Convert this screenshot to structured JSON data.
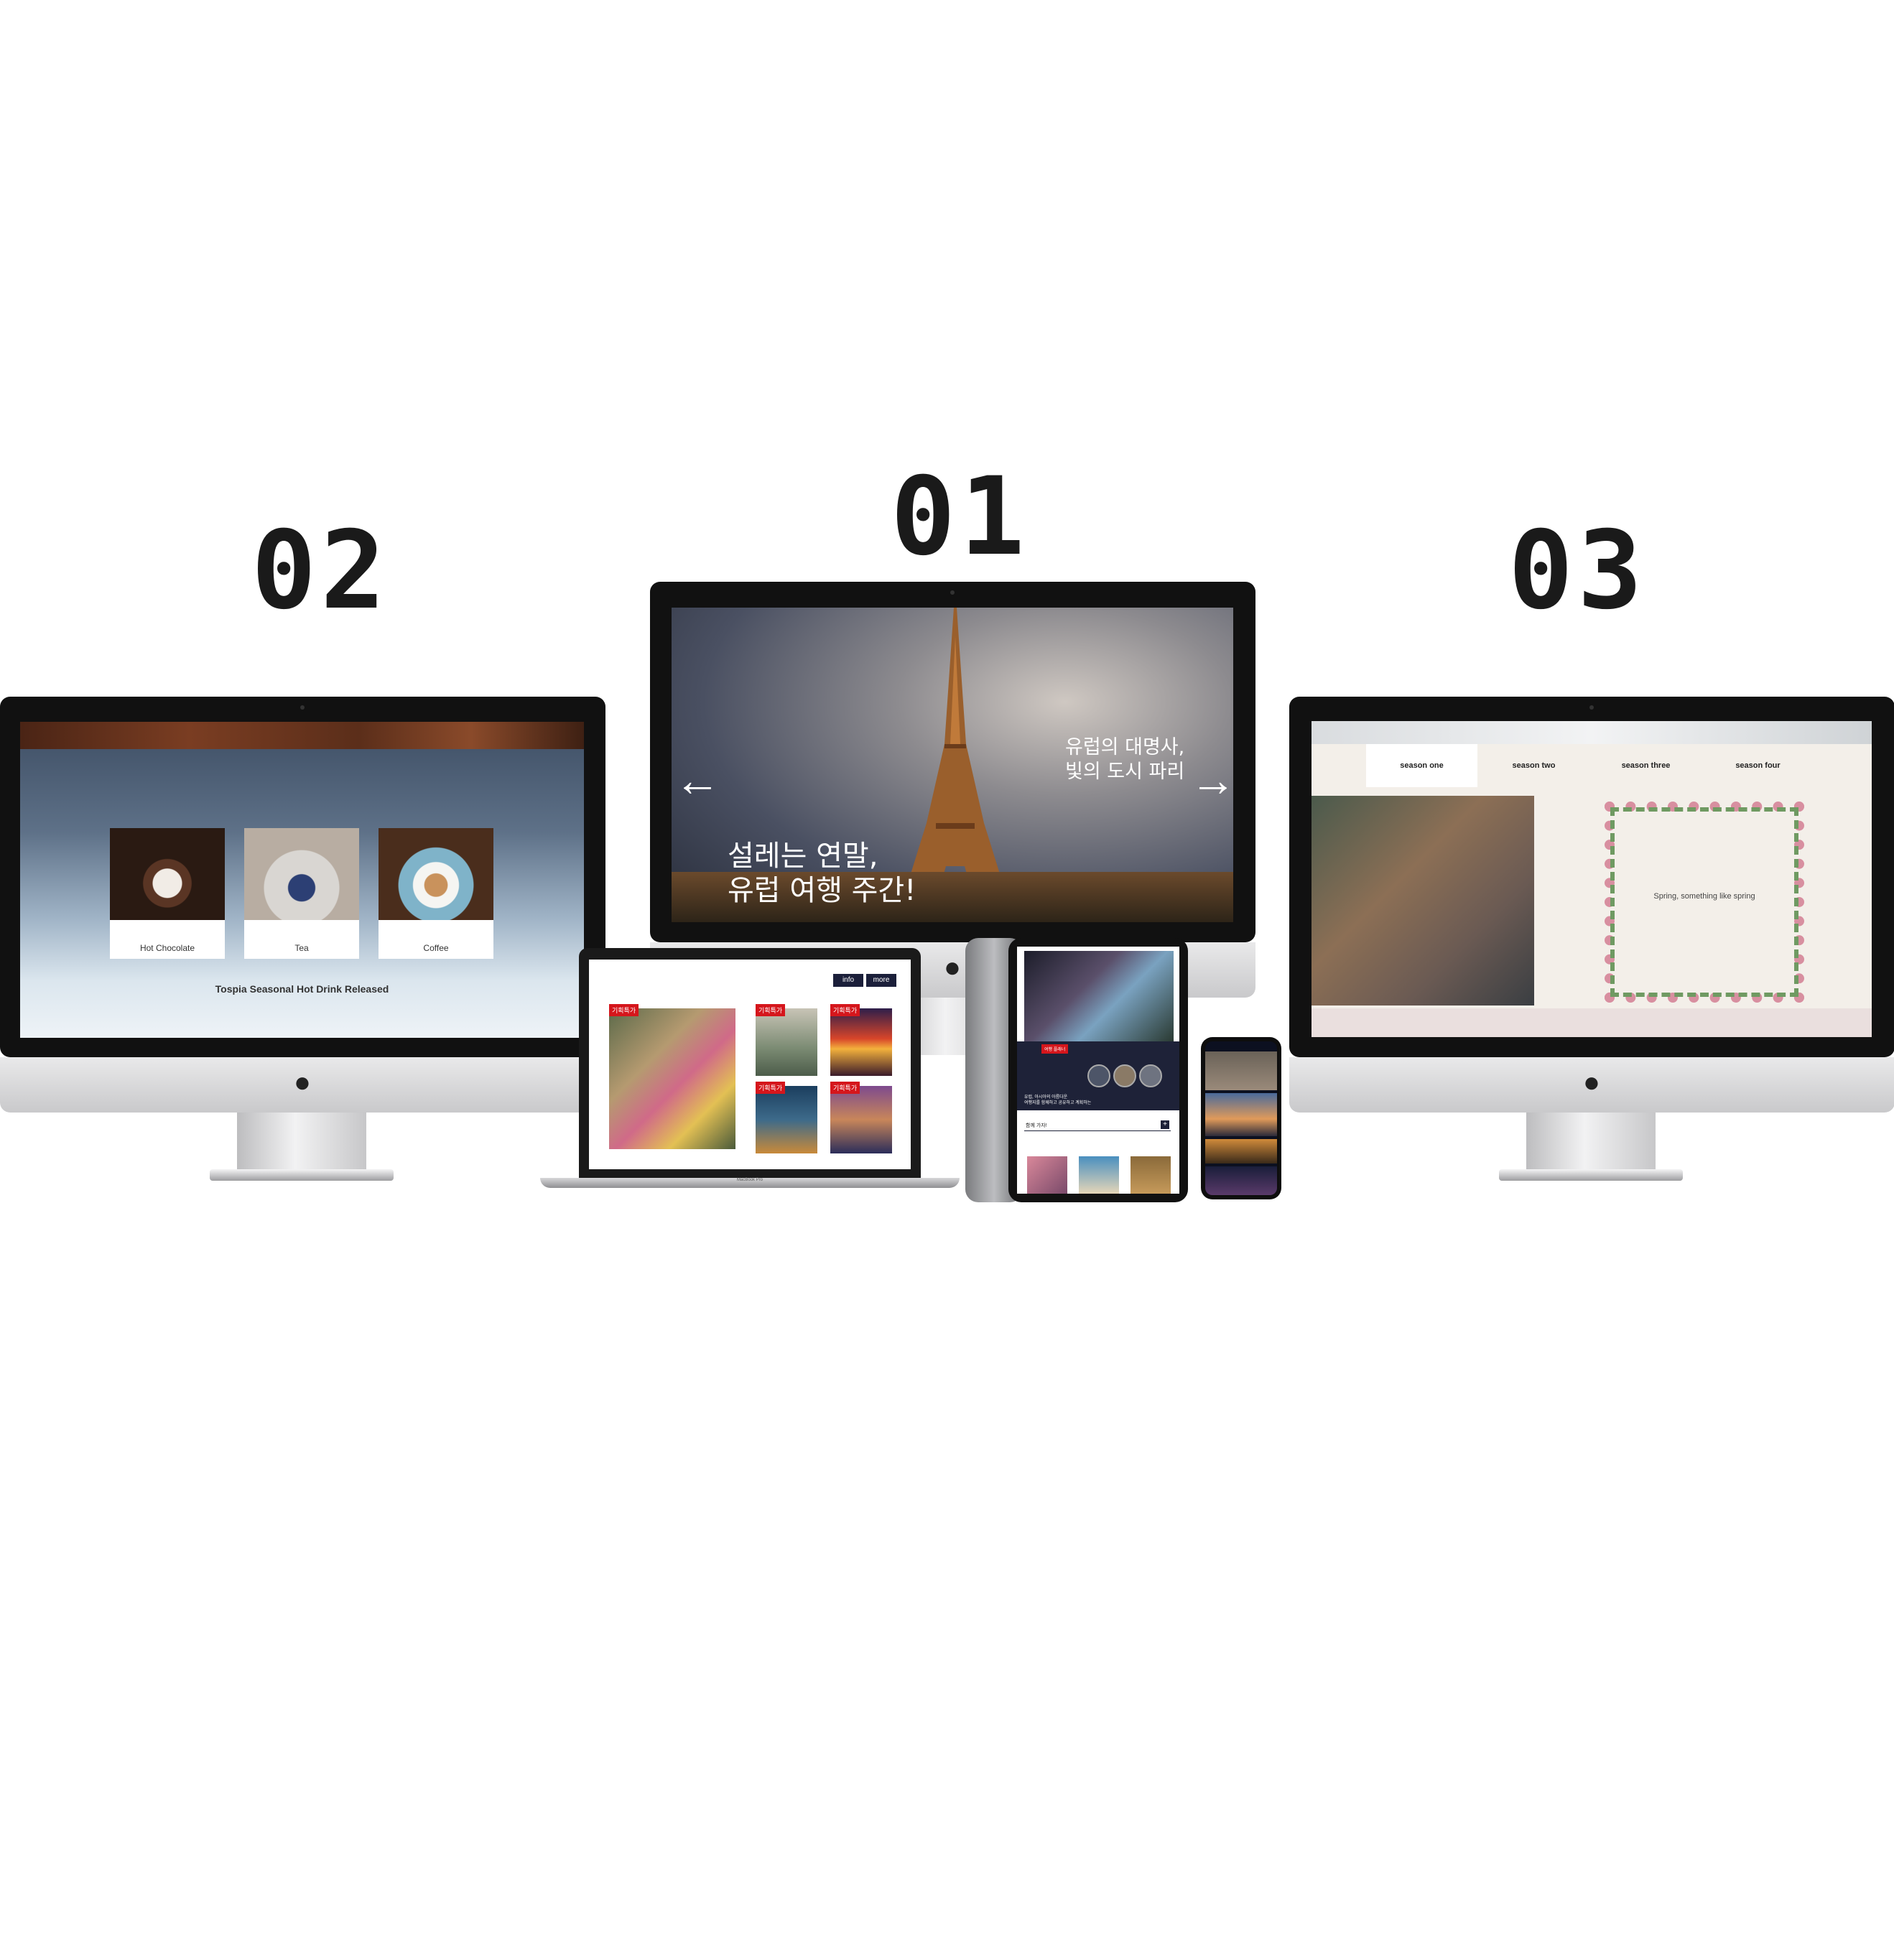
{
  "labels": {
    "one": "01",
    "two": "02",
    "three": "03"
  },
  "site_coffee": {
    "cards": [
      {
        "label": "Hot Chocolate"
      },
      {
        "label": "Tea"
      },
      {
        "label": "Coffee"
      }
    ],
    "tagline": "Tospia Seasonal Hot Drink Released"
  },
  "site_paris": {
    "headline_right_1": "유럽의 대명사,",
    "headline_right_2": "빛의 도시 파리",
    "headline_left_1": "설레는 연말,",
    "headline_left_2": "유럽 여행 주간!",
    "prev_icon": "←",
    "next_icon": "→"
  },
  "site_season": {
    "tabs": [
      "season one",
      "season two",
      "season three",
      "season four"
    ],
    "caption": "Spring, something like spring"
  },
  "laptop": {
    "buttons": {
      "info": "info",
      "more": "more"
    },
    "tag": "기획특가",
    "brand": "MacBook Pro"
  },
  "tablet": {
    "tag": "여행 플래너",
    "promo_line_1": "유럽, 아시아의 아름다운",
    "promo_line_2": "여행지를 함께하고 공유하고 계획하는",
    "section_title": "함께 가자!"
  },
  "colors": {
    "accent_red": "#d5161c",
    "navy": "#1b1f3a"
  }
}
